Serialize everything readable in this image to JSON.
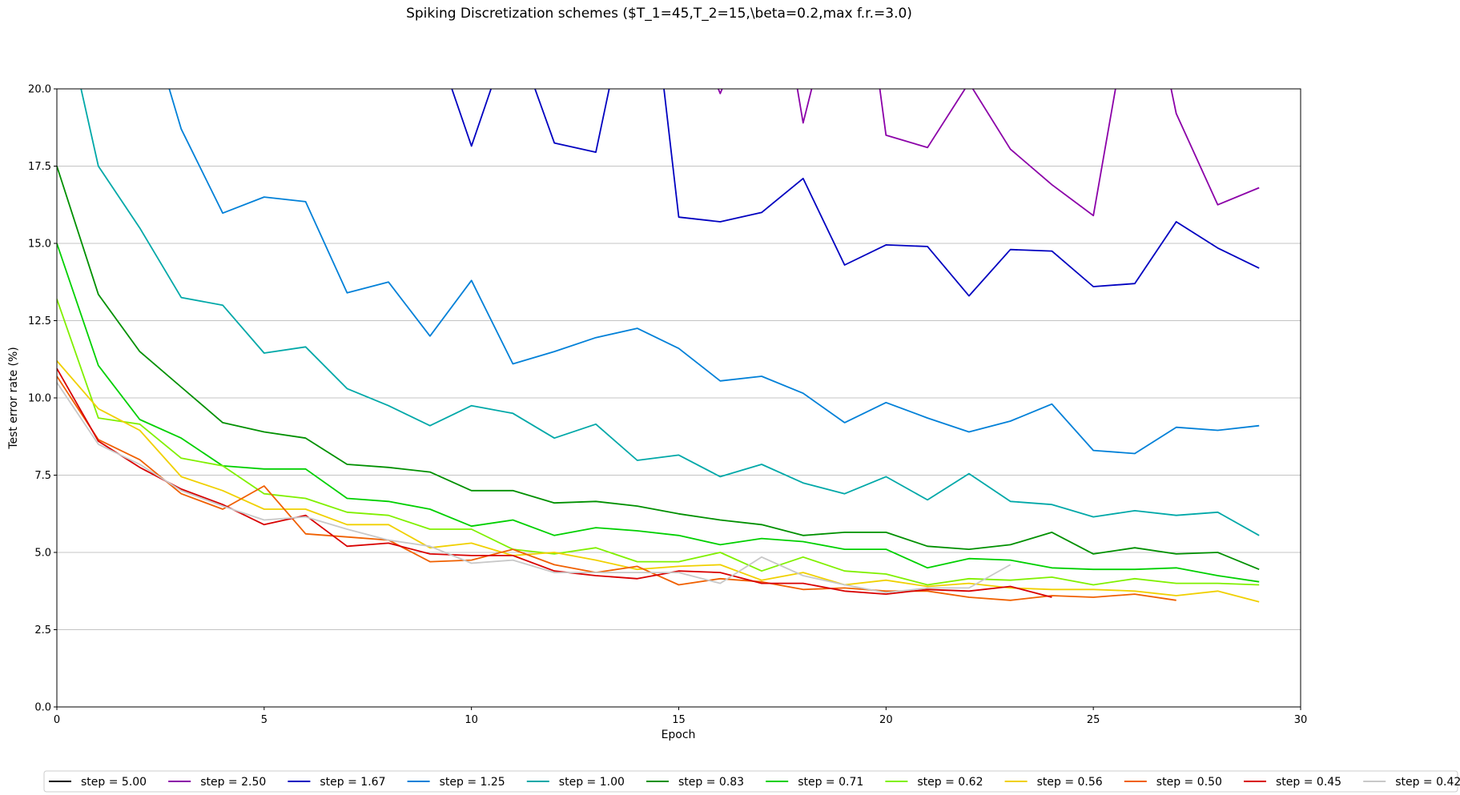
{
  "chart_data": {
    "type": "line",
    "title": "Spiking Discretization schemes ($T_1=45,T_2=15,\\beta=0.2,max f.r.=3.0)",
    "xlabel": "Epoch",
    "ylabel": "Test error rate (%)",
    "xlim": [
      0,
      30
    ],
    "ylim": [
      0,
      20
    ],
    "xticks": [
      "0",
      "5",
      "10",
      "15",
      "20",
      "25",
      "30"
    ],
    "yticks": [
      "0.0",
      "2.5",
      "5.0",
      "7.5",
      "10.0",
      "12.5",
      "15.0",
      "17.5",
      "20.0"
    ],
    "grid": "horizontal",
    "legend_position": "bottom",
    "series": [
      {
        "name": "step = 5.00",
        "color": "#000000",
        "x": [],
        "y": []
      },
      {
        "name": "step = 2.50",
        "color": "#8b00a8",
        "x": [
          15.8,
          16,
          16.2,
          17.8,
          18,
          18.3,
          19.8,
          20,
          21,
          22,
          23,
          24,
          25,
          25.6,
          26.8,
          27,
          28,
          29
        ],
        "y": [
          20.5,
          19.85,
          20.5,
          20.5,
          18.9,
          20.5,
          20.5,
          18.5,
          18.1,
          20.2,
          18.05,
          16.9,
          15.9,
          20.5,
          20.5,
          19.2,
          16.25,
          16.8
        ]
      },
      {
        "name": "step = 1.67",
        "color": "#0000c0",
        "x": [
          9.4,
          10,
          10.6,
          11.4,
          12,
          13,
          13.4,
          14.6,
          15,
          16,
          17,
          18,
          19,
          20,
          21,
          22,
          23,
          24,
          25,
          26,
          27,
          28,
          29
        ],
        "y": [
          20.5,
          18.15,
          20.5,
          20.5,
          18.25,
          17.95,
          20.5,
          20.5,
          15.85,
          15.7,
          16.0,
          17.1,
          14.3,
          14.95,
          14.9,
          13.3,
          14.8,
          14.75,
          13.6,
          13.7,
          15.7,
          14.85,
          14.2
        ]
      },
      {
        "name": "step = 1.25",
        "color": "#0080d8",
        "x": [
          2.6,
          3,
          4,
          5,
          6,
          7,
          8,
          9,
          10,
          11,
          12,
          13,
          14,
          15,
          16,
          17,
          18,
          19,
          20,
          21,
          22,
          23,
          24,
          25,
          26,
          27,
          28,
          29
        ],
        "y": [
          20.5,
          18.7,
          15.98,
          16.5,
          16.35,
          13.4,
          13.75,
          12.0,
          13.8,
          11.1,
          11.5,
          11.95,
          12.25,
          11.6,
          10.55,
          10.7,
          10.15,
          9.2,
          9.85,
          9.35,
          8.9,
          9.25,
          9.8,
          8.3,
          8.2,
          9.05,
          8.95,
          9.1
        ]
      },
      {
        "name": "step = 1.00",
        "color": "#00a8a8",
        "x": [
          0.5,
          1,
          2,
          3,
          4,
          5,
          6,
          7,
          8,
          9,
          10,
          11,
          12,
          13,
          14,
          15,
          16,
          17,
          18,
          19,
          20,
          21,
          22,
          23,
          24,
          25,
          26,
          27,
          28,
          29
        ],
        "y": [
          20.5,
          17.5,
          15.5,
          13.25,
          13.0,
          11.45,
          11.65,
          10.3,
          9.75,
          9.1,
          9.75,
          9.5,
          8.7,
          9.15,
          7.98,
          8.15,
          7.45,
          7.85,
          7.25,
          6.9,
          7.45,
          6.7,
          7.55,
          6.65,
          6.55,
          6.15,
          6.35,
          6.2,
          6.3,
          5.55
        ]
      },
      {
        "name": "step = 0.83",
        "color": "#009000",
        "x": [
          0,
          1,
          2,
          3,
          4,
          5,
          6,
          7,
          8,
          9,
          10,
          11,
          12,
          13,
          14,
          15,
          16,
          17,
          18,
          19,
          20,
          21,
          22,
          23,
          24,
          25,
          26,
          27,
          28,
          29
        ],
        "y": [
          17.5,
          13.35,
          11.5,
          10.35,
          9.2,
          8.9,
          8.7,
          7.85,
          7.75,
          7.6,
          7.0,
          7.0,
          6.6,
          6.65,
          6.5,
          6.25,
          6.05,
          5.9,
          5.55,
          5.65,
          5.65,
          5.2,
          5.1,
          5.25,
          5.65,
          4.95,
          5.15,
          4.95,
          5.0,
          4.45
        ]
      },
      {
        "name": "step = 0.71",
        "color": "#00d000",
        "x": [
          0,
          1,
          2,
          3,
          4,
          5,
          6,
          7,
          8,
          9,
          10,
          11,
          12,
          13,
          14,
          15,
          16,
          17,
          18,
          19,
          20,
          21,
          22,
          23,
          24,
          25,
          26,
          27,
          28,
          29
        ],
        "y": [
          15.0,
          11.05,
          9.3,
          8.7,
          7.8,
          7.7,
          7.7,
          6.75,
          6.65,
          6.4,
          5.85,
          6.05,
          5.55,
          5.8,
          5.7,
          5.55,
          5.25,
          5.45,
          5.35,
          5.1,
          5.1,
          4.5,
          4.8,
          4.75,
          4.5,
          4.45,
          4.45,
          4.5,
          4.25,
          4.05
        ]
      },
      {
        "name": "step = 0.62",
        "color": "#80f000",
        "x": [
          0,
          1,
          2,
          3,
          4,
          5,
          6,
          7,
          8,
          9,
          10,
          11,
          12,
          13,
          14,
          15,
          16,
          17,
          18,
          19,
          20,
          21,
          22,
          23,
          24,
          25,
          26,
          27,
          28,
          29
        ],
        "y": [
          13.2,
          9.35,
          9.15,
          8.05,
          7.8,
          6.9,
          6.75,
          6.3,
          6.2,
          5.75,
          5.75,
          5.1,
          4.95,
          5.15,
          4.7,
          4.7,
          5.0,
          4.4,
          4.85,
          4.4,
          4.3,
          3.95,
          4.15,
          4.1,
          4.2,
          3.95,
          4.15,
          4.0,
          4.0,
          3.95
        ]
      },
      {
        "name": "step = 0.56",
        "color": "#f0d000",
        "x": [
          0,
          1,
          2,
          3,
          4,
          5,
          6,
          7,
          8,
          9,
          10,
          11,
          12,
          13,
          14,
          15,
          16,
          17,
          18,
          19,
          20,
          21,
          22,
          23,
          24,
          25,
          26,
          27,
          28,
          29
        ],
        "y": [
          11.2,
          9.65,
          8.95,
          7.45,
          7.0,
          6.4,
          6.4,
          5.9,
          5.9,
          5.15,
          5.3,
          4.9,
          5.0,
          4.75,
          4.45,
          4.55,
          4.6,
          4.1,
          4.35,
          3.95,
          4.1,
          3.9,
          4.0,
          3.85,
          3.8,
          3.8,
          3.75,
          3.6,
          3.75,
          3.4
        ]
      },
      {
        "name": "step = 0.50",
        "color": "#f06000",
        "x": [
          0,
          1,
          2,
          3,
          4,
          5,
          6,
          7,
          8,
          9,
          10,
          11,
          12,
          13,
          14,
          15,
          16,
          17,
          18,
          19,
          20,
          21,
          22,
          23,
          24,
          25,
          26,
          27
        ],
        "y": [
          10.7,
          8.65,
          8.0,
          6.9,
          6.4,
          7.15,
          5.6,
          5.5,
          5.4,
          4.7,
          4.75,
          5.1,
          4.6,
          4.35,
          4.55,
          3.95,
          4.15,
          4.05,
          3.8,
          3.85,
          3.75,
          3.75,
          3.55,
          3.45,
          3.6,
          3.55,
          3.65,
          3.45
        ]
      },
      {
        "name": "step = 0.45",
        "color": "#d80000",
        "x": [
          0,
          1,
          2,
          3,
          4,
          5,
          6,
          7,
          8,
          9,
          10,
          11,
          12,
          13,
          14,
          15,
          16,
          17,
          18,
          19,
          20,
          21,
          22,
          23,
          24
        ],
        "y": [
          10.95,
          8.6,
          7.75,
          7.05,
          6.55,
          5.9,
          6.2,
          5.2,
          5.3,
          4.95,
          4.9,
          4.9,
          4.4,
          4.25,
          4.15,
          4.4,
          4.35,
          4.0,
          4.0,
          3.75,
          3.65,
          3.8,
          3.75,
          3.9,
          3.55
        ]
      },
      {
        "name": "step = 0.42",
        "color": "#c8c8c8",
        "x": [
          0,
          1,
          2,
          3,
          4,
          5,
          6,
          7,
          8,
          9,
          10,
          11,
          12,
          13,
          14,
          15,
          16,
          17,
          18,
          19,
          20,
          21,
          22,
          23
        ],
        "y": [
          10.5,
          8.5,
          7.85,
          7.0,
          6.5,
          6.05,
          6.15,
          5.75,
          5.4,
          5.2,
          4.65,
          4.75,
          4.35,
          4.35,
          4.35,
          4.35,
          4.0,
          4.85,
          4.25,
          3.95,
          3.7,
          3.85,
          3.85,
          4.6
        ]
      }
    ]
  }
}
